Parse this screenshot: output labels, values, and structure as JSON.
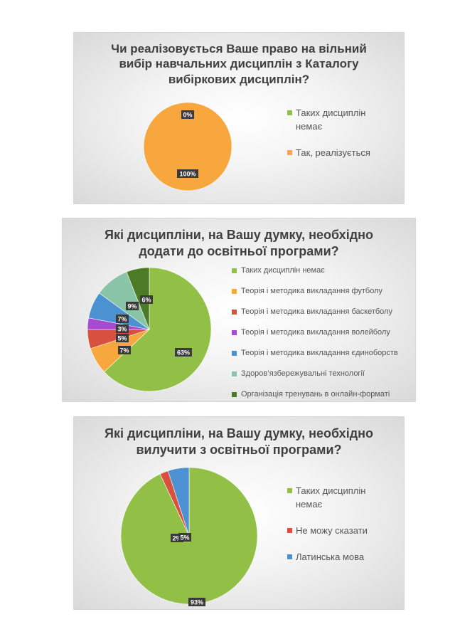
{
  "chart_data": [
    {
      "type": "pie",
      "title": "Чи реалізовується Ваше право на вільний\nвибір навчальних дисциплін з Каталогу\nвибіркових дисциплін?",
      "categories": [
        "Таких дисциплін\nнемає",
        "Так, реалізується"
      ],
      "values": [
        0,
        100
      ],
      "data_labels": [
        "0%",
        "100%"
      ],
      "colors": [
        "#92c047",
        "#f7a73d"
      ],
      "legend": "right"
    },
    {
      "type": "pie",
      "title": "Які дисципліни, на Вашу думку, необхідно\nдодати до освітньої програми?",
      "categories": [
        "Таких дисциплін немає",
        "Теорія і методика викладання футболу",
        "Теорія і методика викладання баскетболу",
        "Теорія і методика викладання волейболу",
        "Теорія і методика викладання єдиноборств",
        "Здоров’язбережувальні технології",
        "Організація тренувань в онлайн-форматі"
      ],
      "values": [
        63,
        7,
        5,
        3,
        7,
        9,
        6
      ],
      "data_labels": [
        "63%",
        "7%",
        "5%",
        "3%",
        "7%",
        "9%",
        "6%"
      ],
      "colors": [
        "#92c047",
        "#f7a73d",
        "#d8513f",
        "#a64ad3",
        "#4c92d2",
        "#89c4a6",
        "#4c7b25"
      ],
      "legend": "right"
    },
    {
      "type": "pie",
      "title": "Які дисципліни, на Вашу думку, необхідно\nвилучити з освітньої програми?",
      "categories": [
        "Таких дисциплін\nнемає",
        "Не можу сказати",
        "Латинська мова"
      ],
      "values": [
        93,
        2,
        5
      ],
      "data_labels": [
        "93%",
        "2%",
        "5%"
      ],
      "colors": [
        "#92c047",
        "#d8513f",
        "#4c92d2"
      ],
      "legend": "right"
    }
  ]
}
